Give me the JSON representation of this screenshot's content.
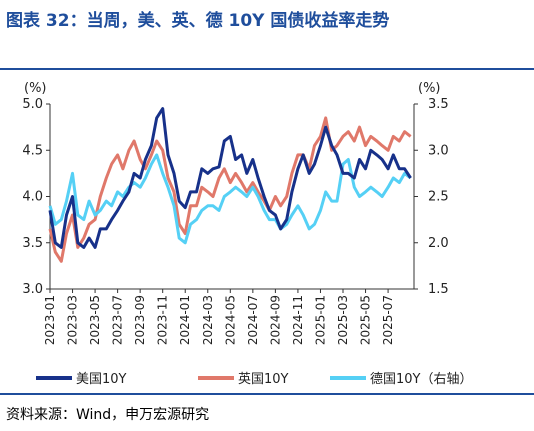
{
  "title": "图表 32：当周，美、英、德 10Y 国债收益率走势",
  "source": "资料来源：Wind，申万宏源研究",
  "chart_data": {
    "type": "line",
    "ylabel_left": "(%)",
    "ylabel_right": "(%)",
    "ylim_left": [
      3.0,
      5.0
    ],
    "yticks_left": [
      "3.0",
      "3.5",
      "4.0",
      "4.5",
      "5.0"
    ],
    "ylim_right": [
      1.5,
      3.5
    ],
    "yticks_right": [
      "1.5",
      "2.0",
      "2.5",
      "3.0",
      "3.5"
    ],
    "xlim": [
      "2023-01",
      "2025-09"
    ],
    "xticks": [
      "2023-01",
      "2023-03",
      "2023-05",
      "2023-07",
      "2023-09",
      "2023-11",
      "2024-01",
      "2024-03",
      "2024-05",
      "2024-07",
      "2024-09",
      "2024-11",
      "2025-01",
      "2025-03",
      "2025-05",
      "2025-07"
    ],
    "legend_position": "bottom",
    "grid": false,
    "series": [
      {
        "name": "美国10Y",
        "axis": "left",
        "color": "#17318a",
        "x": [
          "2023-01-01",
          "2023-01-15",
          "2023-02-01",
          "2023-02-15",
          "2023-03-01",
          "2023-03-15",
          "2023-04-01",
          "2023-04-15",
          "2023-05-01",
          "2023-05-15",
          "2023-06-01",
          "2023-06-15",
          "2023-07-01",
          "2023-07-15",
          "2023-08-01",
          "2023-08-15",
          "2023-09-01",
          "2023-09-15",
          "2023-10-01",
          "2023-10-15",
          "2023-11-01",
          "2023-11-15",
          "2023-12-01",
          "2023-12-15",
          "2024-01-01",
          "2024-01-15",
          "2024-02-01",
          "2024-02-15",
          "2024-03-01",
          "2024-03-15",
          "2024-04-01",
          "2024-04-15",
          "2024-05-01",
          "2024-05-15",
          "2024-06-01",
          "2024-06-15",
          "2024-07-01",
          "2024-07-15",
          "2024-08-01",
          "2024-08-15",
          "2024-09-01",
          "2024-09-15",
          "2024-10-01",
          "2024-10-15",
          "2024-11-01",
          "2024-11-15",
          "2024-12-01",
          "2024-12-15",
          "2025-01-01",
          "2025-01-15",
          "2025-02-01",
          "2025-02-15",
          "2025-03-01",
          "2025-03-15",
          "2025-04-01",
          "2025-04-15",
          "2025-05-01",
          "2025-05-15",
          "2025-06-01",
          "2025-06-15",
          "2025-07-01",
          "2025-07-15",
          "2025-08-01",
          "2025-08-15",
          "2025-09-01"
        ],
        "values": [
          3.85,
          3.5,
          3.45,
          3.8,
          4.0,
          3.5,
          3.45,
          3.55,
          3.45,
          3.65,
          3.65,
          3.75,
          3.85,
          3.95,
          4.05,
          4.25,
          4.2,
          4.4,
          4.55,
          4.85,
          4.95,
          4.45,
          4.25,
          3.95,
          3.88,
          4.05,
          4.05,
          4.3,
          4.25,
          4.3,
          4.32,
          4.6,
          4.65,
          4.4,
          4.45,
          4.25,
          4.4,
          4.2,
          4.0,
          3.85,
          3.8,
          3.65,
          3.75,
          4.05,
          4.3,
          4.45,
          4.25,
          4.35,
          4.55,
          4.75,
          4.55,
          4.45,
          4.25,
          4.25,
          4.2,
          4.4,
          4.3,
          4.5,
          4.45,
          4.4,
          4.3,
          4.45,
          4.3,
          4.3,
          4.2
        ]
      },
      {
        "name": "英国10Y",
        "axis": "left",
        "color": "#e0786a",
        "x": [
          "2023-01-01",
          "2023-01-15",
          "2023-02-01",
          "2023-02-15",
          "2023-03-01",
          "2023-03-15",
          "2023-04-01",
          "2023-04-15",
          "2023-05-01",
          "2023-05-15",
          "2023-06-01",
          "2023-06-15",
          "2023-07-01",
          "2023-07-15",
          "2023-08-01",
          "2023-08-15",
          "2023-09-01",
          "2023-09-15",
          "2023-10-01",
          "2023-10-15",
          "2023-11-01",
          "2023-11-15",
          "2023-12-01",
          "2023-12-15",
          "2024-01-01",
          "2024-01-15",
          "2024-02-01",
          "2024-02-15",
          "2024-03-01",
          "2024-03-15",
          "2024-04-01",
          "2024-04-15",
          "2024-05-01",
          "2024-05-15",
          "2024-06-01",
          "2024-06-15",
          "2024-07-01",
          "2024-07-15",
          "2024-08-01",
          "2024-08-15",
          "2024-09-01",
          "2024-09-15",
          "2024-10-01",
          "2024-10-15",
          "2024-11-01",
          "2024-11-15",
          "2024-12-01",
          "2024-12-15",
          "2025-01-01",
          "2025-01-15",
          "2025-02-01",
          "2025-02-15",
          "2025-03-01",
          "2025-03-15",
          "2025-04-01",
          "2025-04-15",
          "2025-05-01",
          "2025-05-15",
          "2025-06-01",
          "2025-06-15",
          "2025-07-01",
          "2025-07-15",
          "2025-08-01",
          "2025-08-15",
          "2025-09-01"
        ],
        "values": [
          3.65,
          3.4,
          3.3,
          3.6,
          3.8,
          3.45,
          3.55,
          3.7,
          3.75,
          4.0,
          4.2,
          4.35,
          4.45,
          4.3,
          4.5,
          4.6,
          4.4,
          4.3,
          4.45,
          4.6,
          4.5,
          4.2,
          4.05,
          3.7,
          3.6,
          3.9,
          3.9,
          4.1,
          4.05,
          4.0,
          4.2,
          4.3,
          4.15,
          4.25,
          4.15,
          4.05,
          4.15,
          4.05,
          3.95,
          3.85,
          4.0,
          3.9,
          4.0,
          4.25,
          4.45,
          4.45,
          4.3,
          4.55,
          4.65,
          4.85,
          4.5,
          4.55,
          4.65,
          4.7,
          4.6,
          4.75,
          4.55,
          4.65,
          4.6,
          4.55,
          4.5,
          4.65,
          4.6,
          4.7,
          4.65
        ]
      },
      {
        "name": "德国10Y（右轴）",
        "axis": "right",
        "color": "#55d0f5",
        "x": [
          "2023-01-01",
          "2023-01-15",
          "2023-02-01",
          "2023-02-15",
          "2023-03-01",
          "2023-03-15",
          "2023-04-01",
          "2023-04-15",
          "2023-05-01",
          "2023-05-15",
          "2023-06-01",
          "2023-06-15",
          "2023-07-01",
          "2023-07-15",
          "2023-08-01",
          "2023-08-15",
          "2023-09-01",
          "2023-09-15",
          "2023-10-01",
          "2023-10-15",
          "2023-11-01",
          "2023-11-15",
          "2023-12-01",
          "2023-12-15",
          "2024-01-01",
          "2024-01-15",
          "2024-02-01",
          "2024-02-15",
          "2024-03-01",
          "2024-03-15",
          "2024-04-01",
          "2024-04-15",
          "2024-05-01",
          "2024-05-15",
          "2024-06-01",
          "2024-06-15",
          "2024-07-01",
          "2024-07-15",
          "2024-08-01",
          "2024-08-15",
          "2024-09-01",
          "2024-09-15",
          "2024-10-01",
          "2024-10-15",
          "2024-11-01",
          "2024-11-15",
          "2024-12-01",
          "2024-12-15",
          "2025-01-01",
          "2025-01-15",
          "2025-02-01",
          "2025-02-15",
          "2025-03-01",
          "2025-03-15",
          "2025-04-01",
          "2025-04-15",
          "2025-05-01",
          "2025-05-15",
          "2025-06-01",
          "2025-06-15",
          "2025-07-01",
          "2025-07-15",
          "2025-08-01",
          "2025-08-15",
          "2025-09-01"
        ],
        "values": [
          2.4,
          2.2,
          2.25,
          2.45,
          2.75,
          2.3,
          2.25,
          2.45,
          2.3,
          2.35,
          2.45,
          2.4,
          2.55,
          2.5,
          2.6,
          2.65,
          2.6,
          2.7,
          2.85,
          2.95,
          2.75,
          2.6,
          2.4,
          2.05,
          2.0,
          2.2,
          2.25,
          2.35,
          2.4,
          2.4,
          2.35,
          2.5,
          2.55,
          2.6,
          2.55,
          2.5,
          2.6,
          2.5,
          2.35,
          2.25,
          2.25,
          2.15,
          2.2,
          2.3,
          2.4,
          2.3,
          2.15,
          2.2,
          2.35,
          2.55,
          2.45,
          2.45,
          2.85,
          2.9,
          2.6,
          2.5,
          2.55,
          2.6,
          2.55,
          2.5,
          2.6,
          2.7,
          2.65,
          2.75,
          2.7
        ]
      }
    ]
  }
}
